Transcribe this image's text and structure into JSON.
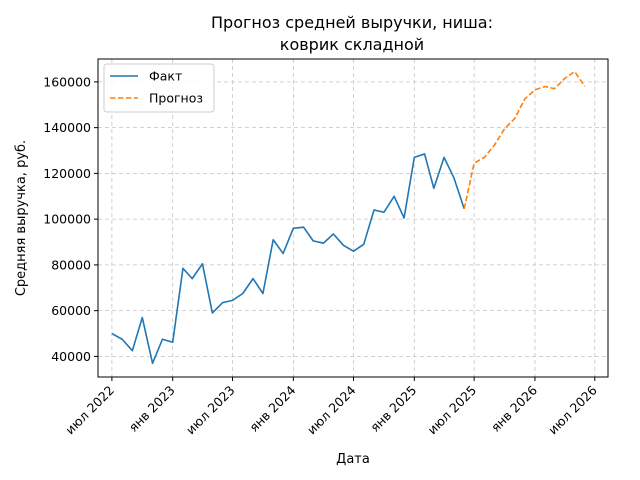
{
  "chart_data": {
    "type": "line",
    "title": "Прогноз средней выручки, ниша:",
    "subtitle": "коврик складной",
    "xlabel": "Дата",
    "ylabel": "Средняя выручка, руб.",
    "xlim": [
      "2022-05-20",
      "2026-08-10"
    ],
    "ylim": [
      31000,
      170000
    ],
    "x_ticks": [
      {
        "date": "2022-07-01",
        "label": "июл 2022"
      },
      {
        "date": "2023-01-01",
        "label": "янв 2023"
      },
      {
        "date": "2023-07-01",
        "label": "июл 2023"
      },
      {
        "date": "2024-01-01",
        "label": "янв 2024"
      },
      {
        "date": "2024-07-01",
        "label": "июл 2024"
      },
      {
        "date": "2025-01-01",
        "label": "янв 2025"
      },
      {
        "date": "2025-07-01",
        "label": "июл 2025"
      },
      {
        "date": "2026-01-01",
        "label": "янв 2026"
      },
      {
        "date": "2026-07-01",
        "label": "июл 2026"
      }
    ],
    "y_ticks": [
      {
        "value": 40000,
        "label": "40000"
      },
      {
        "value": 60000,
        "label": "60000"
      },
      {
        "value": 80000,
        "label": "80000"
      },
      {
        "value": 100000,
        "label": "100000"
      },
      {
        "value": 120000,
        "label": "120000"
      },
      {
        "value": 140000,
        "label": "140000"
      },
      {
        "value": 160000,
        "label": "160000"
      }
    ],
    "grid": true,
    "legend_position": "top-left",
    "series": [
      {
        "name": "Факт",
        "color": "#1f77b4",
        "style": "solid",
        "points": [
          {
            "x": "2022-07-01",
            "y": 50000
          },
          {
            "x": "2022-08-01",
            "y": 47500
          },
          {
            "x": "2022-09-01",
            "y": 42500
          },
          {
            "x": "2022-10-01",
            "y": 57000
          },
          {
            "x": "2022-11-01",
            "y": 37000
          },
          {
            "x": "2022-12-01",
            "y": 47500
          },
          {
            "x": "2023-01-01",
            "y": 46200
          },
          {
            "x": "2023-02-01",
            "y": 78500
          },
          {
            "x": "2023-03-01",
            "y": 74000
          },
          {
            "x": "2023-04-01",
            "y": 80500
          },
          {
            "x": "2023-05-01",
            "y": 59000
          },
          {
            "x": "2023-06-01",
            "y": 63500
          },
          {
            "x": "2023-07-01",
            "y": 64500
          },
          {
            "x": "2023-08-01",
            "y": 67500
          },
          {
            "x": "2023-09-01",
            "y": 74000
          },
          {
            "x": "2023-10-01",
            "y": 67500
          },
          {
            "x": "2023-11-01",
            "y": 91000
          },
          {
            "x": "2023-12-01",
            "y": 85000
          },
          {
            "x": "2024-01-01",
            "y": 96000
          },
          {
            "x": "2024-02-01",
            "y": 96500
          },
          {
            "x": "2024-03-01",
            "y": 90500
          },
          {
            "x": "2024-04-01",
            "y": 89500
          },
          {
            "x": "2024-05-01",
            "y": 93500
          },
          {
            "x": "2024-06-01",
            "y": 88500
          },
          {
            "x": "2024-07-01",
            "y": 86000
          },
          {
            "x": "2024-08-01",
            "y": 89000
          },
          {
            "x": "2024-09-01",
            "y": 104000
          },
          {
            "x": "2024-10-01",
            "y": 103000
          },
          {
            "x": "2024-11-01",
            "y": 110000
          },
          {
            "x": "2024-12-01",
            "y": 100500
          },
          {
            "x": "2025-01-01",
            "y": 127000
          },
          {
            "x": "2025-02-01",
            "y": 128500
          },
          {
            "x": "2025-03-01",
            "y": 113500
          },
          {
            "x": "2025-04-01",
            "y": 127000
          },
          {
            "x": "2025-05-01",
            "y": 118000
          },
          {
            "x": "2025-06-01",
            "y": 104500
          }
        ]
      },
      {
        "name": "Прогноз",
        "color": "#ff7f0e",
        "style": "dashed",
        "points": [
          {
            "x": "2025-06-01",
            "y": 104500
          },
          {
            "x": "2025-07-01",
            "y": 124500
          },
          {
            "x": "2025-08-01",
            "y": 127000
          },
          {
            "x": "2025-09-01",
            "y": 132500
          },
          {
            "x": "2025-10-01",
            "y": 139500
          },
          {
            "x": "2025-11-01",
            "y": 144000
          },
          {
            "x": "2025-12-01",
            "y": 152500
          },
          {
            "x": "2026-01-01",
            "y": 156500
          },
          {
            "x": "2026-02-01",
            "y": 158000
          },
          {
            "x": "2026-03-01",
            "y": 157000
          },
          {
            "x": "2026-04-01",
            "y": 161500
          },
          {
            "x": "2026-05-01",
            "y": 164500
          },
          {
            "x": "2026-06-01",
            "y": 158000
          }
        ]
      }
    ]
  }
}
